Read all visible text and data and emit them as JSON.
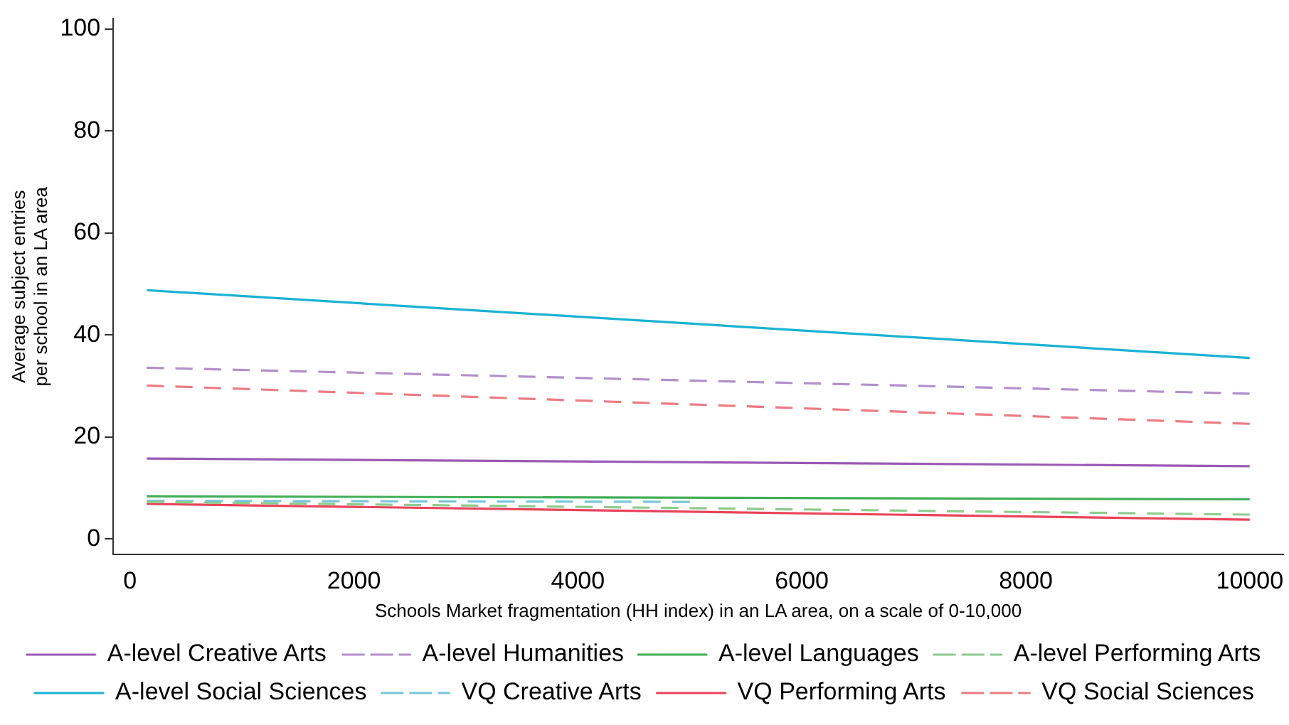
{
  "chart_data": {
    "type": "line",
    "xlabel": "Schools Market fragmentation (HH index) in an LA area, on a scale of 0-10,000",
    "ylabel": "Average subject entries\nper school in an LA area",
    "xlim": [
      -150,
      10300
    ],
    "xticks": [
      0,
      2000,
      4000,
      6000,
      8000,
      10000
    ],
    "ylim": [
      -3,
      102
    ],
    "yticks": [
      0,
      20,
      40,
      60,
      80,
      100
    ],
    "grid": false,
    "legend": "bottom",
    "marker": "none",
    "x": [
      150,
      10000
    ],
    "series": [
      {
        "name": "A-level Creative Arts",
        "color": "#9b59b6",
        "line_style": "solid",
        "values": [
          15.8,
          14.3
        ]
      },
      {
        "name": "A-level Humanities",
        "color": "#b38fcc",
        "line_style": "dashed",
        "values": [
          33.6,
          28.5
        ]
      },
      {
        "name": "A-level Languages",
        "color": "#3fae55",
        "line_style": "solid",
        "values": [
          8.4,
          7.8
        ]
      },
      {
        "name": "A-level Performing Arts",
        "color": "#8ccc8c",
        "line_style": "dashed",
        "values": [
          7.3,
          4.8
        ]
      },
      {
        "name": "A-level Social Sciences",
        "color": "#1ab2d4",
        "line_style": "solid",
        "values": [
          48.8,
          35.5
        ]
      },
      {
        "name": "VQ Creative Arts",
        "color": "#78c4dc",
        "line_style": "dashed",
        "x": [
          150,
          5000
        ],
        "values": [
          7.5,
          7.3
        ]
      },
      {
        "name": "VQ Performing Arts",
        "color": "#e8435a",
        "line_style": "solid",
        "values": [
          6.9,
          3.8
        ]
      },
      {
        "name": "VQ Social Sciences",
        "color": "#ec7b84",
        "line_style": "dashed",
        "values": [
          30.1,
          22.6
        ]
      }
    ]
  }
}
